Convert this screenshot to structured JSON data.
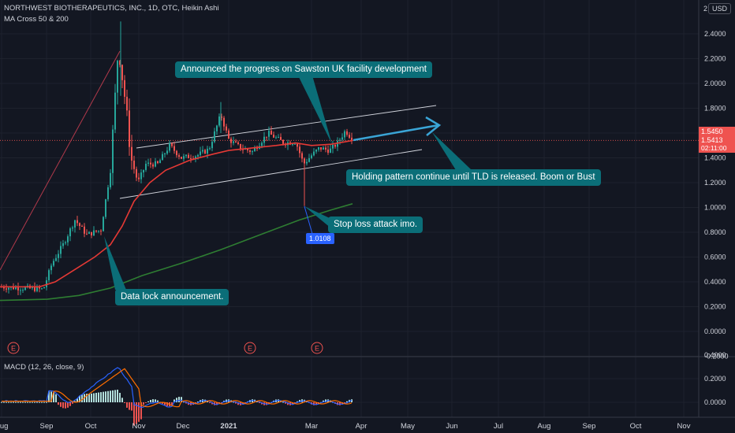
{
  "header": {
    "title": "NORTHWEST BIOTHERAPEUTICS, INC., 1D, OTC, Heikin Ashi",
    "indicator": "MA Cross 50 & 200",
    "currency": "USD"
  },
  "price_scale": [
    "2.4000",
    "2.2000",
    "2.0000",
    "1.8000",
    "1.6000",
    "1.4000",
    "1.2000",
    "1.0000",
    "0.8000",
    "0.6000",
    "0.4000",
    "0.2000",
    "0.0000",
    "-0.2000"
  ],
  "top_tick": "2",
  "price_labels": {
    "last": "1.5450",
    "close": "1.5413",
    "countdown": "02:11:00"
  },
  "macd": {
    "title": "MACD (12, 26, close, 9)",
    "scale": [
      "0.4000",
      "0.2000",
      "0.0000"
    ]
  },
  "time_axis": [
    "Aug",
    "Sep",
    "Oct",
    "Nov",
    "Dec",
    "2021",
    "Mar",
    "Apr",
    "May",
    "Jun",
    "Jul",
    "Aug",
    "Sep",
    "Oct",
    "Nov"
  ],
  "earnings_marker": "E",
  "annotations": {
    "sawston": "Announced the progress on Sawston UK facility development",
    "holding": "Holding pattern continue until TLD is released. Boom or Bust",
    "stoploss": "Stop loss attack imo.",
    "datalock": "Data lock announcement.",
    "low_badge": "1.0108"
  },
  "colors": {
    "background": "#131722",
    "up_candle": "#26a69a",
    "down_candle": "#ef5350",
    "ma50": "#e53935",
    "ma200": "#2e7d32",
    "callout": "#0b6e78",
    "macd_line": "#2962ff",
    "signal_line": "#ff6d00"
  },
  "chart_data": {
    "type": "candlestick",
    "title": "NORTHWEST BIOTHERAPEUTICS, INC., 1D, OTC, Heikin Ashi",
    "ylim": [
      -0.2,
      2.5
    ],
    "grid": true,
    "x": [
      "Aug",
      "Sep",
      "Oct",
      "Nov",
      "Dec",
      "2021",
      "Mar",
      "Apr"
    ],
    "price_close_approx": [
      0.33,
      0.5,
      0.85,
      1.4,
      1.3,
      1.55,
      1.42,
      1.545
    ],
    "series": [
      {
        "name": "MA 50",
        "values": [
          0.35,
          0.37,
          0.6,
          1.05,
          1.3,
          1.45,
          1.5,
          1.53
        ]
      },
      {
        "name": "MA 200",
        "values": [
          0.25,
          0.27,
          0.33,
          0.45,
          0.6,
          0.75,
          0.92,
          1.0
        ]
      }
    ],
    "last_price": 1.545,
    "low_marker": 1.0108
  }
}
